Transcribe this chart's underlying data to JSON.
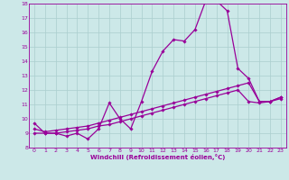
{
  "xlabel": "Windchill (Refroidissement éolien,°C)",
  "background_color": "#cce8e8",
  "grid_color": "#aacece",
  "line_color": "#990099",
  "x_min": 0,
  "x_max": 23,
  "y_min": 8,
  "y_max": 18,
  "line1_x": [
    0,
    1,
    2,
    3,
    4,
    5,
    6,
    7,
    8,
    9,
    10,
    11,
    12,
    13,
    14,
    15,
    16,
    17,
    18,
    19,
    20,
    21,
    22,
    23
  ],
  "line1_y": [
    9.7,
    9.0,
    9.0,
    8.8,
    9.0,
    8.6,
    9.3,
    11.1,
    10.0,
    9.3,
    11.2,
    13.3,
    14.7,
    15.5,
    15.4,
    16.2,
    18.2,
    18.2,
    17.5,
    13.5,
    12.8,
    11.2,
    11.2,
    11.5
  ],
  "line2_x": [
    0,
    1,
    2,
    3,
    4,
    5,
    6,
    7,
    8,
    9,
    10,
    11,
    12,
    13,
    14,
    15,
    16,
    17,
    18,
    19,
    20,
    21,
    22,
    23
  ],
  "line2_y": [
    9.3,
    9.1,
    9.2,
    9.3,
    9.4,
    9.5,
    9.7,
    9.9,
    10.1,
    10.3,
    10.5,
    10.7,
    10.9,
    11.1,
    11.3,
    11.5,
    11.7,
    11.9,
    12.1,
    12.3,
    12.5,
    11.2,
    11.2,
    11.5
  ],
  "line3_x": [
    0,
    1,
    2,
    3,
    4,
    5,
    6,
    7,
    8,
    9,
    10,
    11,
    12,
    13,
    14,
    15,
    16,
    17,
    18,
    19,
    20,
    21,
    22,
    23
  ],
  "line3_y": [
    9.0,
    9.0,
    9.0,
    9.1,
    9.2,
    9.3,
    9.5,
    9.6,
    9.8,
    10.0,
    10.2,
    10.4,
    10.6,
    10.8,
    11.0,
    11.2,
    11.4,
    11.6,
    11.8,
    12.0,
    11.2,
    11.1,
    11.2,
    11.4
  ],
  "marker": "D",
  "marker_size": 1.8,
  "line_width": 0.9
}
